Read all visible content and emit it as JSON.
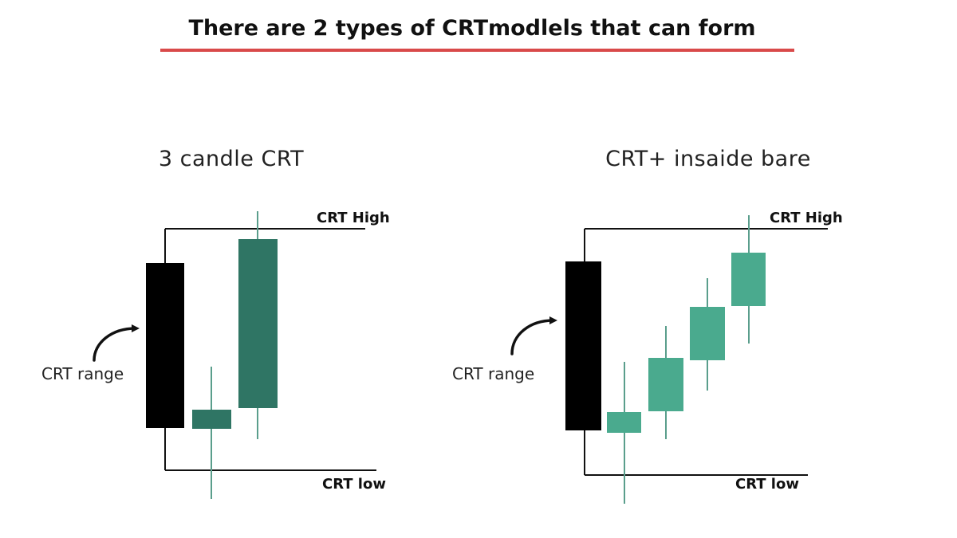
{
  "header": {
    "title": "There are 2 types of CRTmodlels that can form",
    "underline_color": "#d94a4a"
  },
  "colors": {
    "range_candle": "#000000",
    "bull_candle_dark": "#2f7564",
    "bull_candle_light": "#4aaa8e",
    "wick": "#5a9e8c",
    "level_line": "#111111"
  },
  "panels": [
    {
      "title": "3 candle CRT",
      "high_label": "CRT High",
      "low_label": "CRT low",
      "range_label": "CRT range",
      "arrow_icon": "curved-arrow-icon"
    },
    {
      "title": "CRT+ insaide bare",
      "high_label": "CRT High",
      "low_label": "CRT low",
      "range_label": "CRT range",
      "arrow_icon": "curved-arrow-icon"
    }
  ]
}
